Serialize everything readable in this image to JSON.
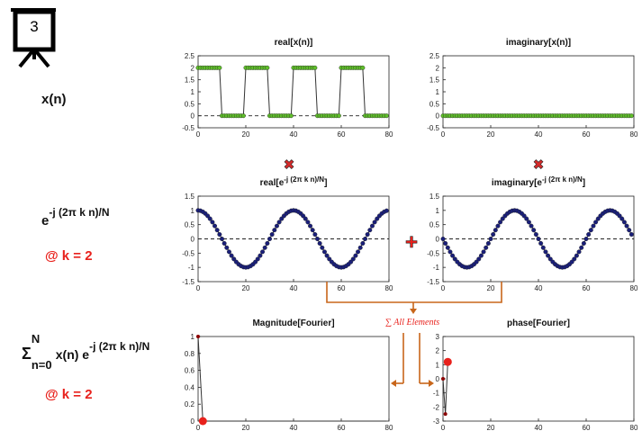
{
  "step_number": "3",
  "labels": {
    "xn": "x(n)",
    "exp_base": "e",
    "exp_power": "-j (2π k n)/N",
    "k_label_1": "@ k = 2",
    "sum_sigma": "Σ",
    "sum_upper": "N",
    "sum_lower": "n=0",
    "sum_body": "x(n) e",
    "sum_power": "-j (2π k n)/N",
    "k_label_2": "@ k = 2",
    "plus": "+",
    "times_1": "✖",
    "times_2": "✖",
    "sum_all": "∑ All Elements"
  },
  "colors": {
    "green": "#5fbf2a",
    "navy": "#1a1f7a",
    "red": "#e8211c",
    "orange": "#c8661a",
    "line": "#333333"
  },
  "charts": [
    {
      "id": "real_x",
      "type": "line",
      "title": "real[x(n)]",
      "xlim": [
        0,
        80
      ],
      "ylim": [
        -0.5,
        2.5
      ],
      "xticks": [
        "0",
        "20",
        "40",
        "60",
        "80"
      ],
      "yticks": [
        "-0.5",
        "0",
        "0.5",
        "1",
        "1.5",
        "2",
        "2.5"
      ]
    },
    {
      "id": "imag_x",
      "type": "line",
      "title": "imaginary[x(n)]",
      "xlim": [
        0,
        80
      ],
      "ylim": [
        -0.5,
        2.5
      ],
      "xticks": [
        "0",
        "20",
        "40",
        "60",
        "80"
      ],
      "yticks": [
        "-0.5",
        "0",
        "0.5",
        "1",
        "1.5",
        "2",
        "2.5"
      ]
    },
    {
      "id": "real_e",
      "type": "line",
      "title_base": "real[e",
      "title_sup": "-j (2π k n)/N",
      "title_end": "]",
      "xlim": [
        0,
        80
      ],
      "ylim": [
        -1.5,
        1.5
      ],
      "xticks": [
        "0",
        "20",
        "40",
        "60",
        "80"
      ],
      "yticks": [
        "-1.5",
        "-1",
        "-0.5",
        "0",
        "0.5",
        "1",
        "1.5"
      ]
    },
    {
      "id": "imag_e",
      "type": "line",
      "title_base": "imaginary[e",
      "title_sup": "-j (2π k n)/N",
      "title_end": "]",
      "xlim": [
        0,
        80
      ],
      "ylim": [
        -1.5,
        1.5
      ],
      "xticks": [
        "0",
        "20",
        "40",
        "60",
        "80"
      ],
      "yticks": [
        "-1.5",
        "-1",
        "-0.5",
        "0",
        "0.5",
        "1",
        "1.5"
      ]
    },
    {
      "id": "mag_f",
      "type": "line",
      "title": "Magnitude[Fourier]",
      "xlim": [
        0,
        80
      ],
      "ylim": [
        0,
        1
      ],
      "xticks": [
        "0",
        "20",
        "40",
        "60",
        "80"
      ],
      "yticks": [
        "0",
        "0.2",
        "0.4",
        "0.6",
        "0.8",
        "1"
      ]
    },
    {
      "id": "phase_f",
      "type": "line",
      "title": "phase[Fourier]",
      "xlim": [
        0,
        80
      ],
      "ylim": [
        -3,
        3
      ],
      "xticks": [
        "0",
        "20",
        "40",
        "60",
        "80"
      ],
      "yticks": [
        "-3",
        "-2",
        "-1",
        "0",
        "1",
        "2",
        "3"
      ]
    }
  ],
  "chart_data": [
    {
      "type": "line",
      "title": "real[x(n)]",
      "description": "square wave, amplitude 2, period 20, high for n in [0,9]",
      "series": [
        {
          "color": "#5fbf2a",
          "x": [
            0,
            9,
            10,
            19,
            20,
            29,
            30,
            39,
            40,
            49,
            50,
            59,
            60,
            69,
            70,
            79
          ],
          "y": [
            2,
            2,
            0,
            0,
            2,
            2,
            0,
            0,
            2,
            2,
            0,
            0,
            2,
            2,
            0,
            0
          ]
        }
      ]
    },
    {
      "type": "line",
      "title": "imaginary[x(n)]",
      "series": [
        {
          "color": "#5fbf2a",
          "x": [
            0,
            79
          ],
          "y": [
            0,
            0
          ]
        }
      ]
    },
    {
      "type": "line",
      "title": "real[e^-j(2πkn)/N]",
      "series": [
        {
          "color": "#1a1f7a",
          "formula": "cos(2π·2·n/80)",
          "n": [
            0,
            79
          ]
        }
      ]
    },
    {
      "type": "line",
      "title": "imaginary[e^-j(2πkn)/N]",
      "series": [
        {
          "color": "#1a1f7a",
          "formula": "-sin(2π·2·n/80)",
          "n": [
            0,
            79
          ]
        }
      ]
    },
    {
      "type": "line",
      "title": "Magnitude[Fourier]",
      "series": [
        {
          "color": "#e8211c",
          "x": [
            0,
            1,
            2,
            3,
            79
          ],
          "y": [
            1,
            0,
            0,
            0,
            0
          ],
          "highlight": {
            "x": 2,
            "y": 0
          }
        }
      ]
    },
    {
      "type": "line",
      "title": "phase[Fourier]",
      "series": [
        {
          "color": "#8b0000",
          "x": [
            0,
            1,
            2
          ],
          "y": [
            0,
            -2.5,
            1.2
          ],
          "highlight": {
            "x": 2,
            "y": 1.2
          }
        }
      ]
    }
  ]
}
